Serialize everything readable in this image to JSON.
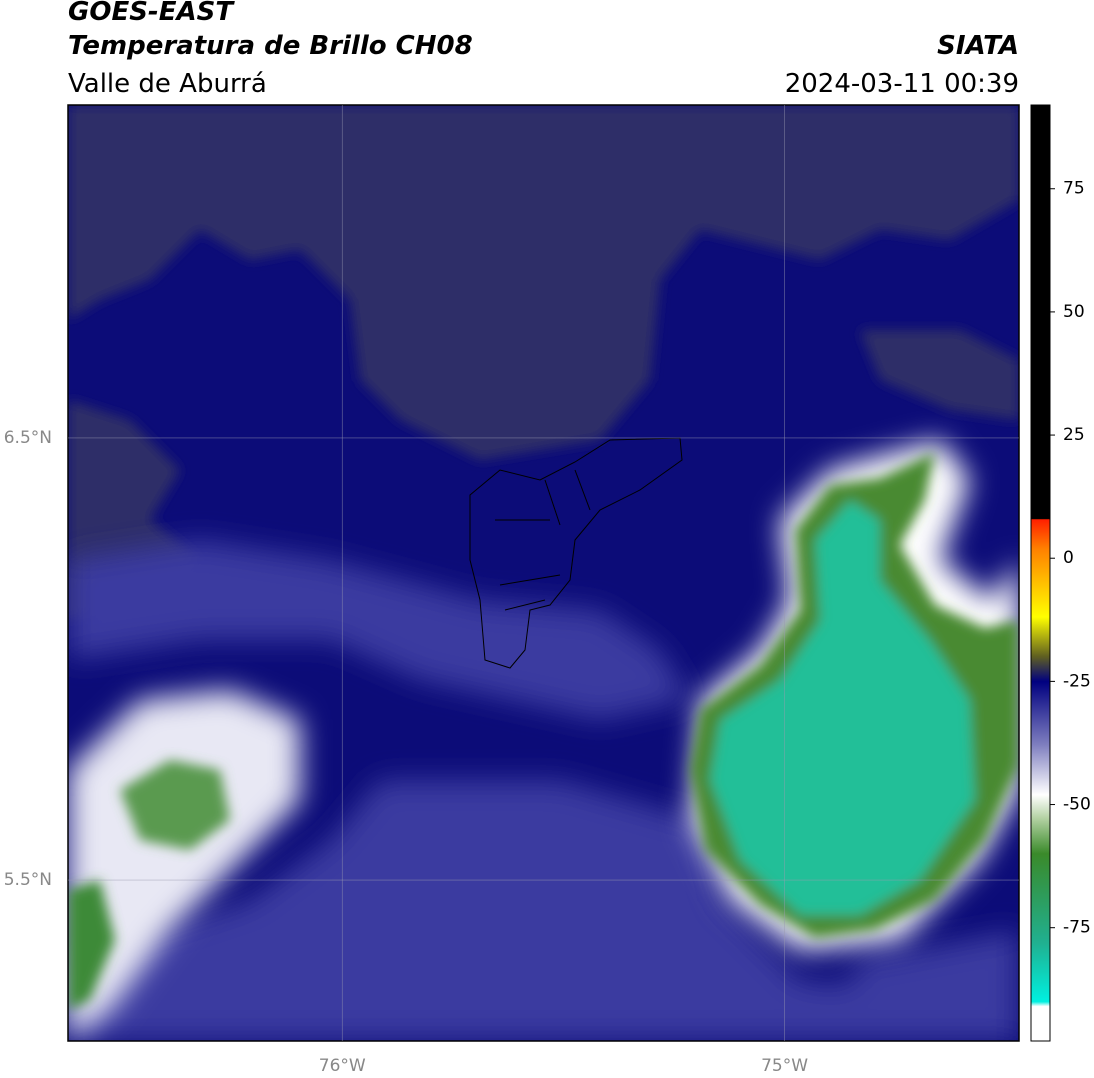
{
  "header": {
    "title": "GOES-EAST",
    "subtitle": "Temperatura de Brillo CH08",
    "region": "Valle de Aburrá",
    "source": "SIATA",
    "datetime": "2024-03-11 00:39"
  },
  "map": {
    "xlim": [
      -76.62,
      -74.47
    ],
    "ylim": [
      5.136,
      7.253
    ],
    "xticks": [
      {
        "value": -76,
        "label": "76°W"
      },
      {
        "value": -75,
        "label": "75°W"
      }
    ],
    "yticks": [
      {
        "value": 6.5,
        "label": "6.5°N"
      },
      {
        "value": 5.5,
        "label": "5.5°N"
      }
    ]
  },
  "colorbar": {
    "lim": [
      -98,
      92
    ],
    "ticks": [
      75,
      50,
      25,
      0,
      -25,
      -50,
      -75
    ]
  }
}
